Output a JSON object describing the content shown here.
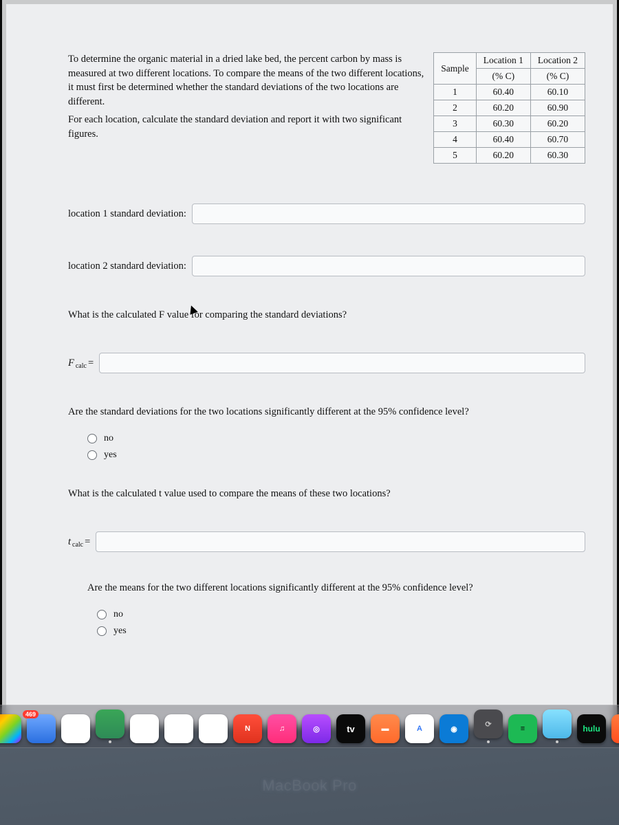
{
  "intro": {
    "p1": "To determine the organic material in a dried lake bed, the percent carbon by mass is measured at two different locations. To compare the means of the two different locations, it must first be determined whether the standard deviations of the two locations are different.",
    "p2": "For each location, calculate the standard deviation and report it with two significant figures."
  },
  "table": {
    "headers": {
      "sample": "Sample",
      "loc1": "Location 1",
      "loc1_unit": "(% C)",
      "loc2": "Location 2",
      "loc2_unit": "(% C)"
    },
    "rows": [
      {
        "n": "1",
        "a": "60.40",
        "b": "60.10"
      },
      {
        "n": "2",
        "a": "60.20",
        "b": "60.90"
      },
      {
        "n": "3",
        "a": "60.30",
        "b": "60.20"
      },
      {
        "n": "4",
        "a": "60.40",
        "b": "60.70"
      },
      {
        "n": "5",
        "a": "60.20",
        "b": "60.30"
      }
    ]
  },
  "labels": {
    "loc1_sd": "location 1 standard deviation:",
    "loc2_sd": "location 2 standard deviation:",
    "f_question": "What is the calculated F value for comparing the standard deviations?",
    "f_var": "F",
    "f_sub": "calc",
    "equals": " =",
    "sd_diff_q": "Are the standard deviations for the two locations significantly different at the 95% confidence level?",
    "t_question": "What is the calculated t value used to compare the means of these two locations?",
    "t_var": "t",
    "t_sub": "calc",
    "means_diff_q": "Are the means for the two different locations significantly different at the 95% confidence level?",
    "no": "no",
    "yes": "yes"
  },
  "dock": {
    "badge": "469",
    "items": [
      {
        "bg": "linear-gradient(135deg,#ff7a00,#ffcc00 30%,#7ed321 55%,#00b3ff 80%,#c400ff)",
        "txt": ""
      },
      {
        "bg": "linear-gradient(#6fa8ff,#2a6fe0)",
        "txt": ""
      },
      {
        "bg": "#ffffff",
        "txt": "",
        "fg": "#ff4500"
      },
      {
        "bg": "linear-gradient(#3aa657,#2e8b57)",
        "txt": ""
      },
      {
        "bg": "#ffffff",
        "txt": ""
      },
      {
        "bg": "#ffffff",
        "txt": ""
      },
      {
        "bg": "#ffffff",
        "txt": ""
      },
      {
        "bg": "linear-gradient(#ff4e3a,#e0321e)",
        "txt": "N",
        "fg": "#fff"
      },
      {
        "bg": "linear-gradient(#ff4fa3,#ff2d7a)",
        "txt": "♫",
        "fg": "#fff"
      },
      {
        "bg": "linear-gradient(#b84dff,#7d2ae8)",
        "txt": "◎",
        "fg": "#fff"
      },
      {
        "bg": "#0a0a0a",
        "txt": "tv",
        "fg": "#fff"
      },
      {
        "bg": "linear-gradient(#ff8a4c,#ff6a2b)",
        "txt": "▬",
        "fg": "#fff"
      },
      {
        "bg": "#ffffff",
        "txt": "A",
        "fg": "#3478f6"
      },
      {
        "bg": "#0b7bd6",
        "txt": "◉",
        "fg": "#fff"
      },
      {
        "bg": "#4a4a4e",
        "txt": "⟳",
        "fg": "#bfbfbf"
      },
      {
        "bg": "#1db954",
        "txt": "≡",
        "fg": "#0a0a0a"
      },
      {
        "bg": "linear-gradient(#87e0ff,#4db8e8)",
        "txt": ""
      },
      {
        "bg": "#1ce783",
        "txt": "hulu",
        "fg": "#0a0a0a"
      },
      {
        "bg": "linear-gradient(#ff7a3d,#ff4e1e)",
        "txt": ""
      }
    ]
  },
  "laptop": "MacBook Pro"
}
